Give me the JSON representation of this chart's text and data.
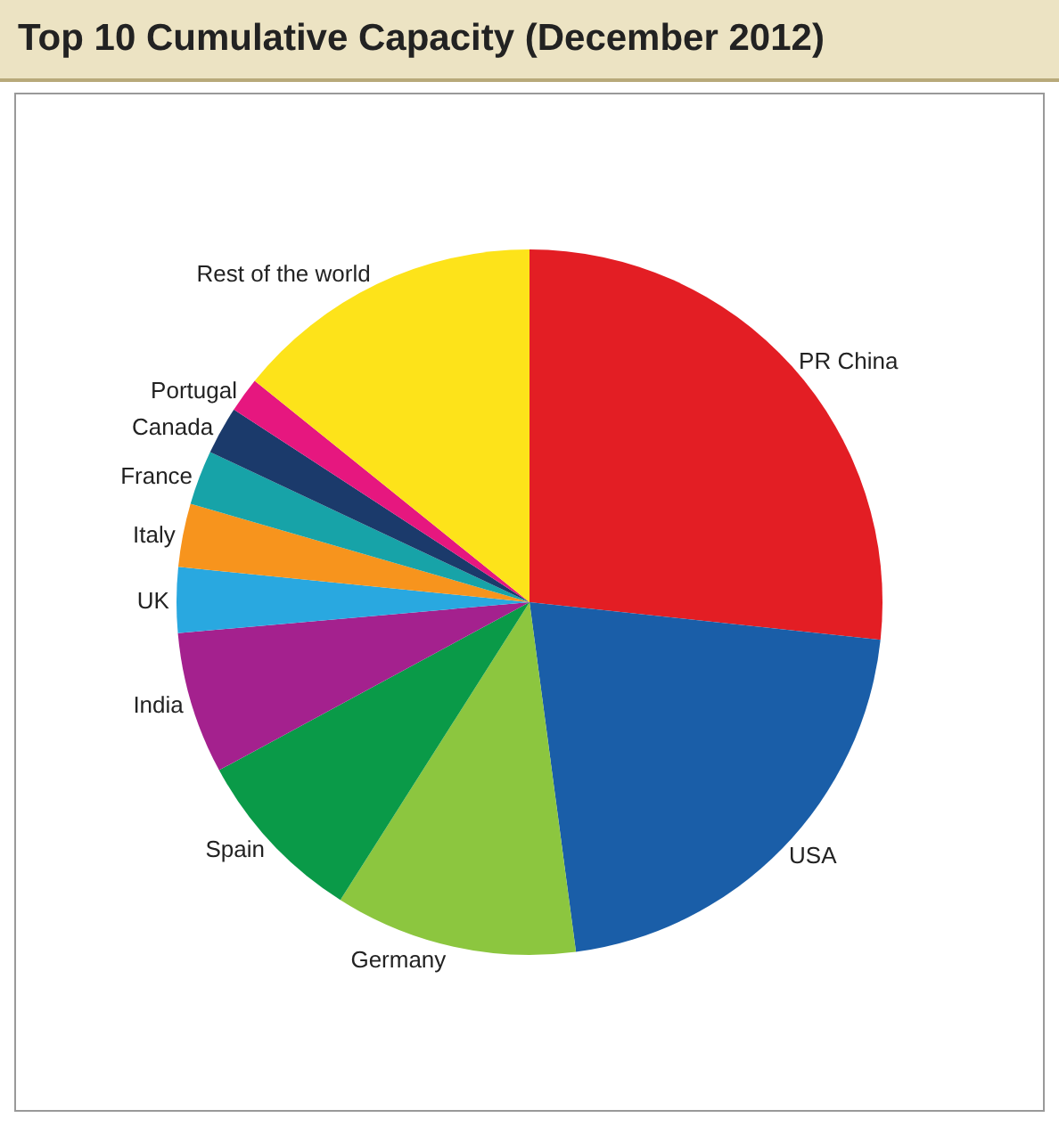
{
  "chart_data": {
    "type": "pie",
    "title": "Top 10 Cumulative Capacity (December 2012)",
    "categories": [
      "PR China",
      "USA",
      "Germany",
      "Spain",
      "India",
      "UK",
      "Italy",
      "France",
      "Canada",
      "Portugal",
      "Rest of the world"
    ],
    "values": [
      26.7,
      21.2,
      11.1,
      8.1,
      6.5,
      3.0,
      2.9,
      2.5,
      2.2,
      1.6,
      14.2
    ],
    "colors": [
      "#e31e24",
      "#1a5ea8",
      "#8cc63f",
      "#0a9a48",
      "#a4218e",
      "#29a8e0",
      "#f7941d",
      "#17a3a8",
      "#1b3a6b",
      "#e6177f",
      "#fde31a"
    ],
    "legend": false
  }
}
